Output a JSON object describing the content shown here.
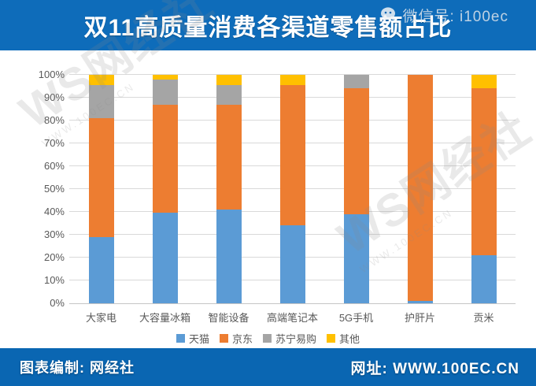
{
  "title": "双11高质量消费各渠道零售额占比",
  "watermark": {
    "brand": "WS网经社",
    "url": "WWW.100EC.CN"
  },
  "footer": {
    "left": "图表编制: 网经社",
    "right": "网址: WWW.100EC.CN",
    "wechat": "微信号: i100ec"
  },
  "colors": {
    "title_bar": "#0e6cba",
    "footer_bar": "#0a66b2",
    "gridline": "#d9d9d9",
    "axis_text": "#595959"
  },
  "chart_data": {
    "type": "bar",
    "stacked": true,
    "percent_stacked": true,
    "categories": [
      "大家电",
      "大容量冰箱",
      "智能设备",
      "高端笔记本",
      "5G手机",
      "护肝片",
      "贡米"
    ],
    "series": [
      {
        "name": "天猫",
        "color": "#5b9bd5",
        "values": [
          29,
          39.5,
          41,
          34,
          39,
          1,
          21
        ]
      },
      {
        "name": "京东",
        "color": "#ed7d31",
        "values": [
          52,
          47.5,
          46,
          61.5,
          55,
          99,
          73
        ]
      },
      {
        "name": "苏宁易购",
        "color": "#a5a5a5",
        "values": [
          14.5,
          11,
          8.5,
          0,
          6,
          0,
          0
        ]
      },
      {
        "name": "其他",
        "color": "#ffc000",
        "values": [
          4.5,
          2,
          4.5,
          4.5,
          0,
          0,
          6
        ]
      }
    ],
    "ylabel": "",
    "xlabel": "",
    "ylim": [
      0,
      100
    ],
    "ytick_step": 10,
    "ytick_suffix": "%",
    "grid": true,
    "legend_position": "bottom"
  }
}
